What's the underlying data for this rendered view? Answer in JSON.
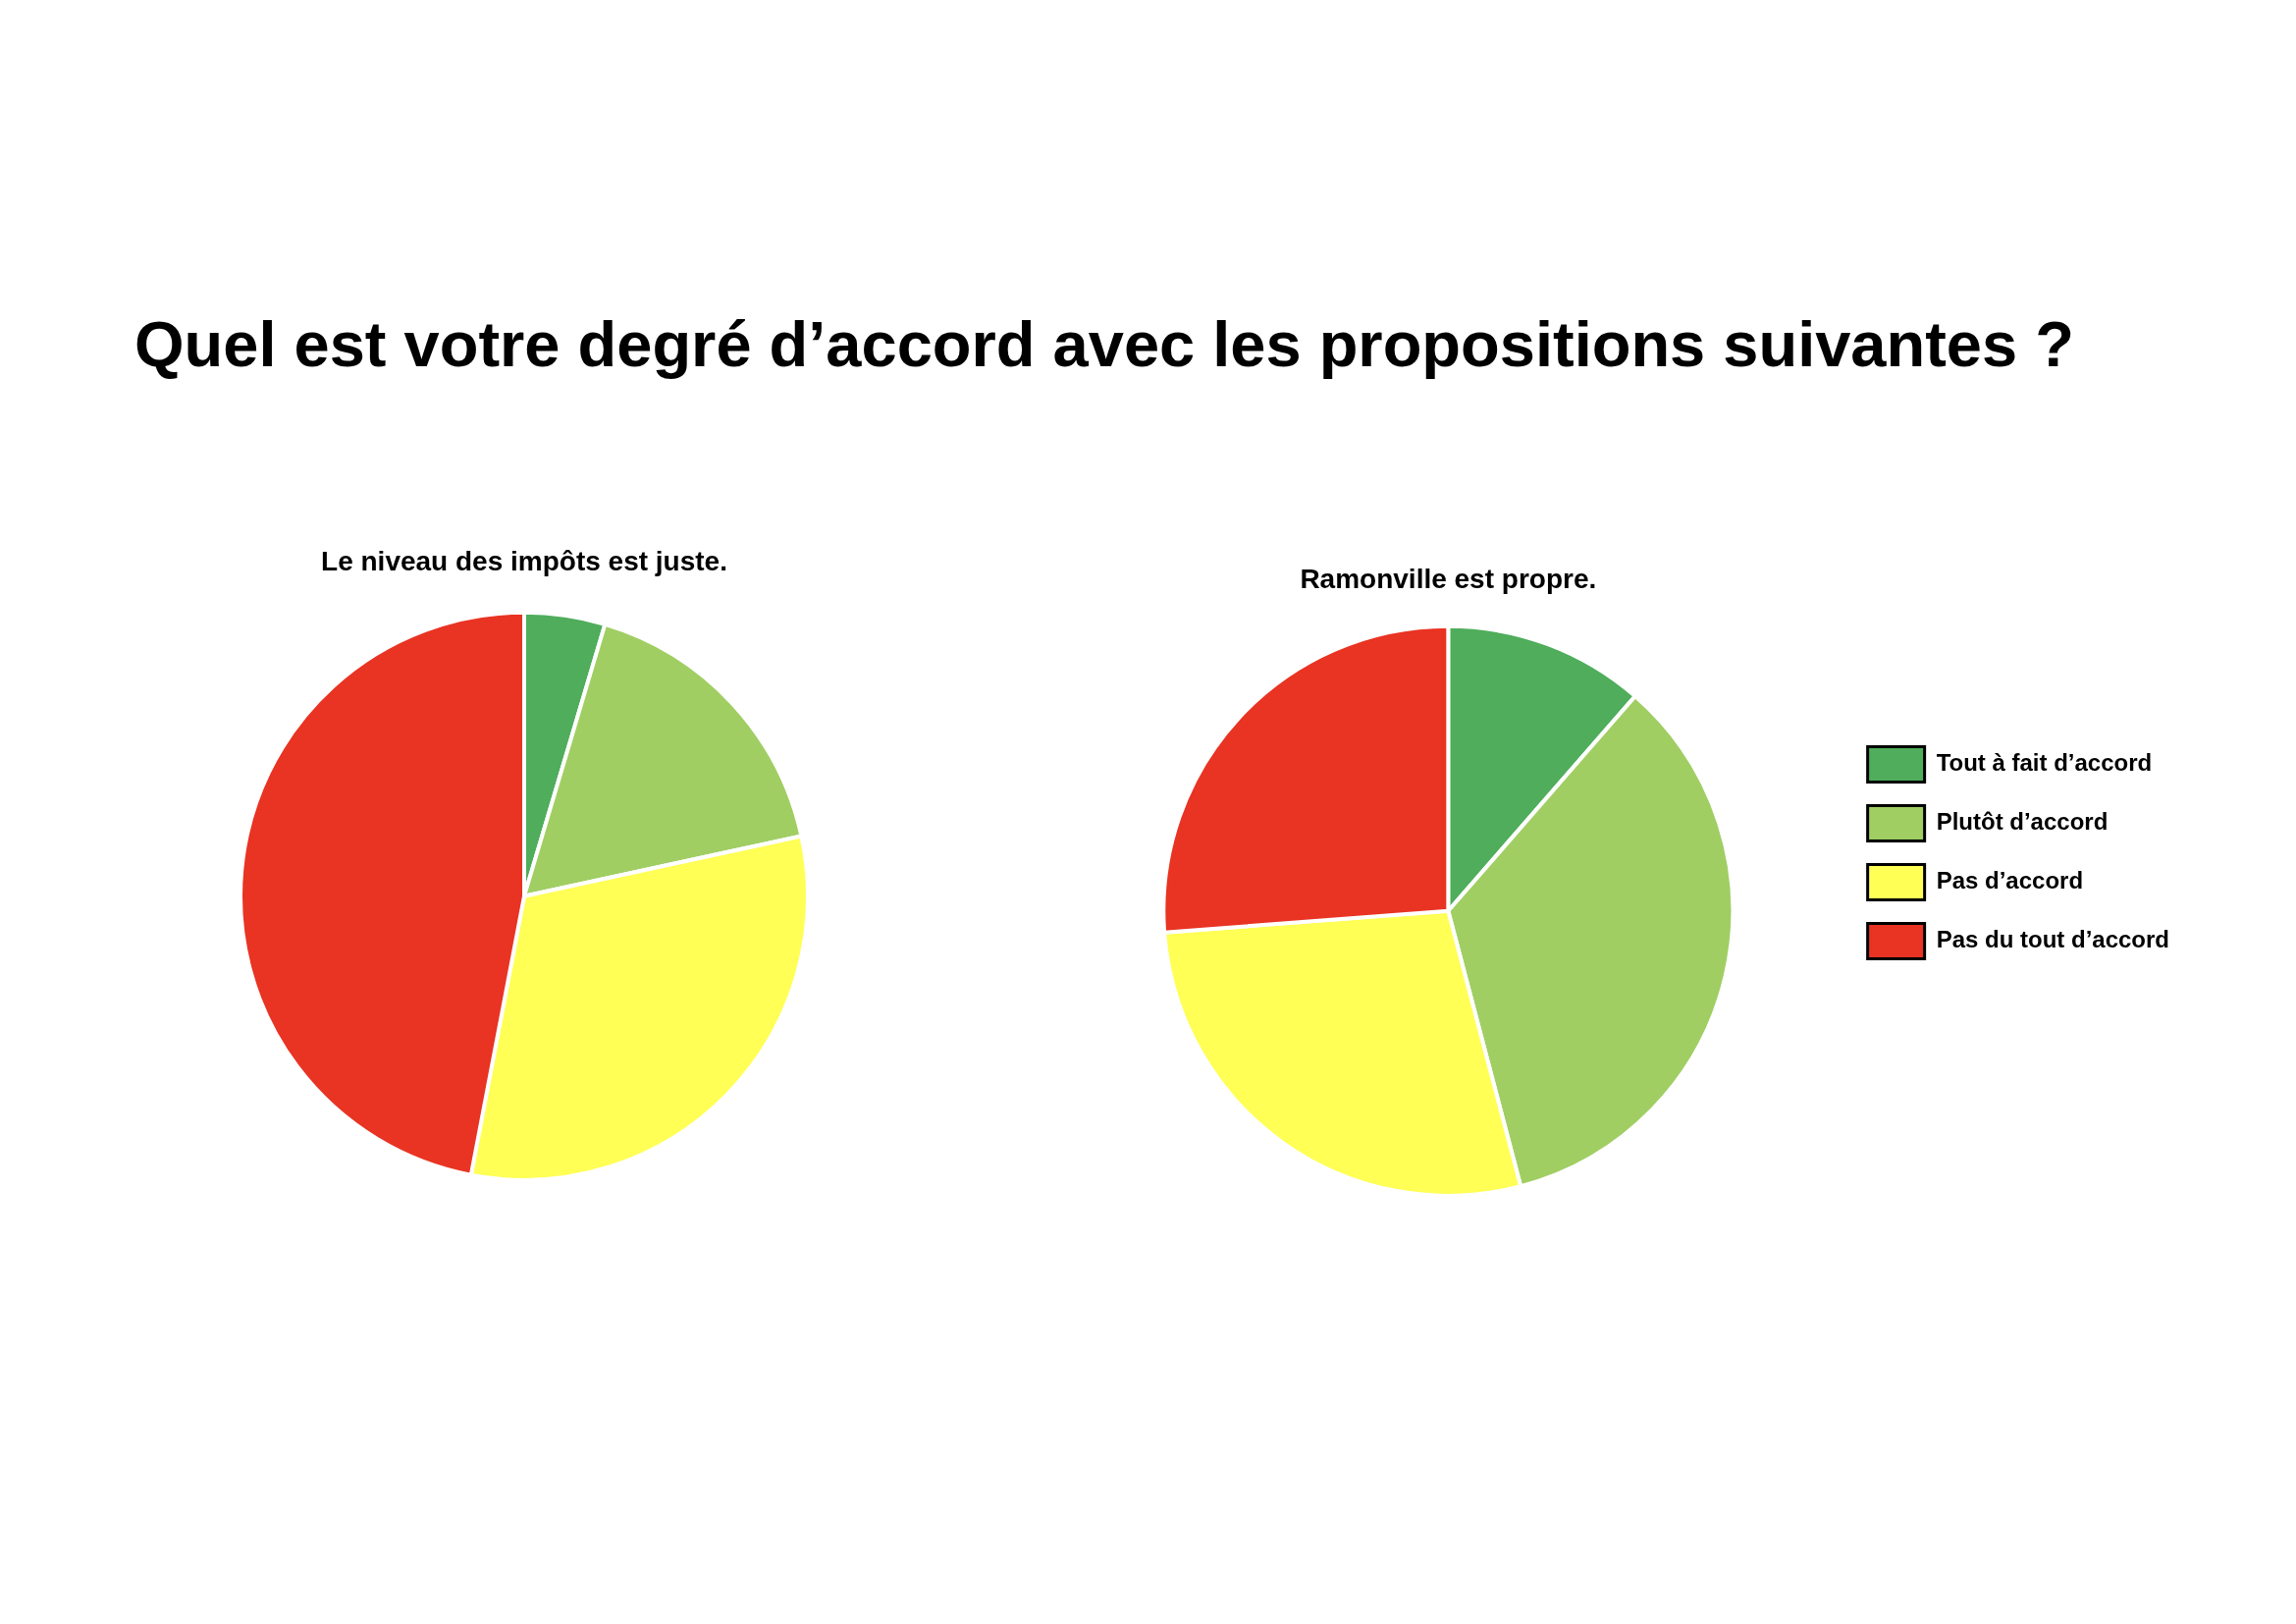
{
  "chart_data": [
    {
      "type": "other",
      "title": "Quel est votre degré d’accord avec les propositions suivantes ?"
    },
    {
      "type": "pie",
      "title": "Le niveau des impôts est juste.",
      "categories": [
        null,
        null,
        null,
        null
      ],
      "values": [
        4.6,
        17.0,
        31.4,
        47.0
      ],
      "colors": [
        "#4fad5b",
        "#a0ce63",
        "#ffff55",
        "#e93323"
      ]
    },
    {
      "type": "pie",
      "title": "Ramonville est propre.",
      "categories": [
        "Tout à fait d’accord",
        "Plutôt d’accord",
        "Pas d’accord",
        "Pas du tout d’accord"
      ],
      "values": [
        11.4,
        34.5,
        27.9,
        26.2
      ],
      "colors": [
        "#4fad5b",
        "#a0ce63",
        "#ffff55",
        "#e93323"
      ],
      "legend": "right"
    }
  ]
}
